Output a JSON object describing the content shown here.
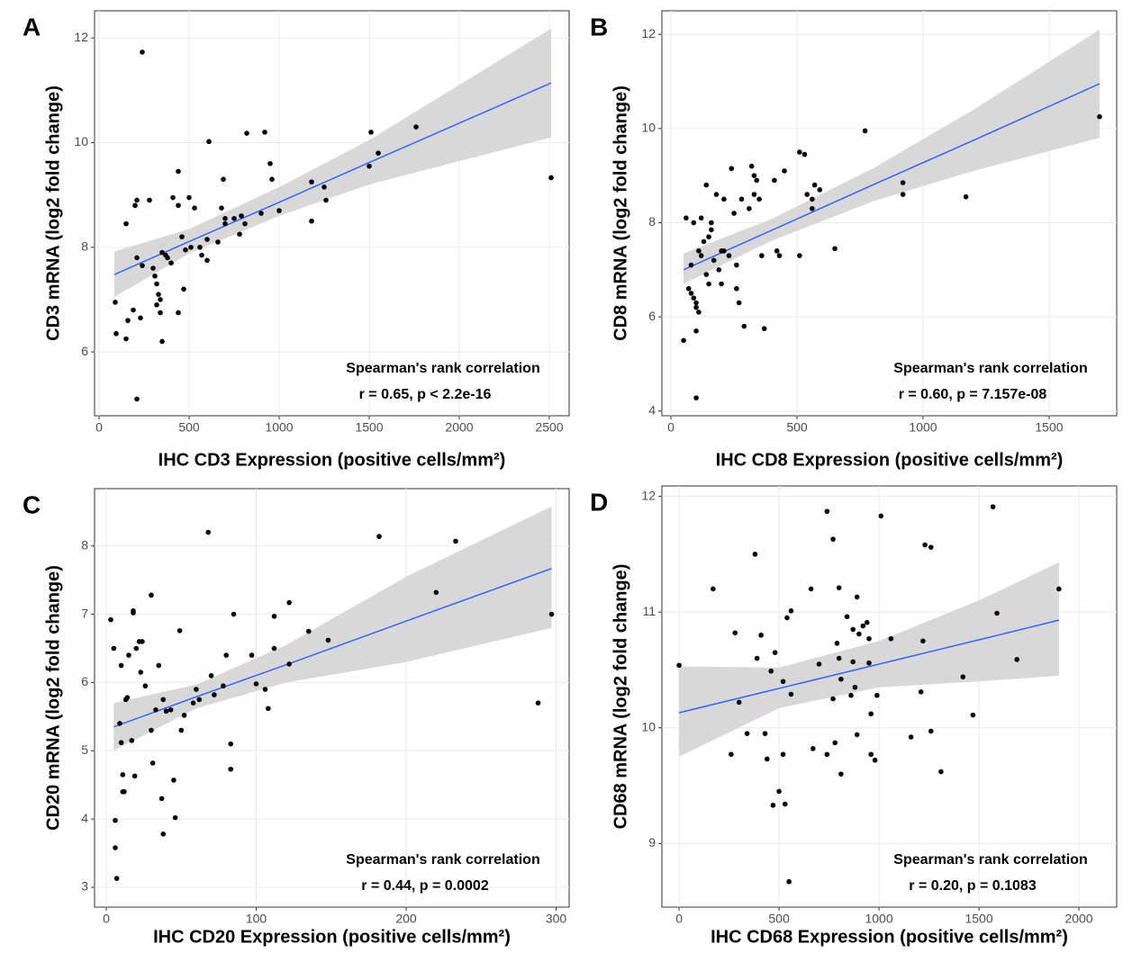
{
  "chart_data": [
    {
      "type": "scatter",
      "panel_label": "A",
      "x_label": "IHC CD3 Expression (positive cells/mm²)",
      "y_label": "CD3 mRNA (log2 fold change)",
      "annotations": [
        "Spearman's rank correlation",
        "r = 0.65,  p < 2.2e-16"
      ],
      "xlim": [
        -25,
        2610
      ],
      "ylim": [
        4.78,
        12.52
      ],
      "xticks": [
        0,
        500,
        1000,
        1500,
        2000,
        2500
      ],
      "yticks": [
        6,
        8,
        10,
        12
      ],
      "grid": true,
      "color": "#000000",
      "x": [
        240,
        210,
        90,
        95,
        150,
        160,
        190,
        230,
        210,
        240,
        200,
        210,
        280,
        150,
        300,
        310,
        320,
        330,
        340,
        320,
        340,
        350,
        350,
        370,
        380,
        400,
        410,
        440,
        440,
        460,
        470,
        480,
        500,
        510,
        440,
        530,
        560,
        570,
        600,
        600,
        610,
        660,
        680,
        690,
        700,
        700,
        750,
        780,
        790,
        810,
        820,
        900,
        920,
        950,
        960,
        1000,
        1180,
        1180,
        1250,
        1260,
        1500,
        1510,
        1550,
        1760,
        2510
      ],
      "values": [
        11.73,
        5.1,
        6.95,
        6.35,
        6.25,
        6.6,
        6.8,
        6.65,
        7.8,
        7.65,
        8.8,
        8.9,
        8.9,
        8.45,
        7.6,
        7.45,
        7.3,
        7.1,
        7.0,
        6.9,
        6.75,
        6.2,
        7.9,
        7.85,
        7.8,
        7.7,
        8.95,
        9.45,
        8.8,
        8.2,
        7.2,
        7.95,
        8.95,
        8.0,
        6.75,
        8.75,
        8.0,
        7.85,
        8.15,
        7.75,
        10.02,
        8.1,
        8.75,
        9.3,
        8.45,
        8.55,
        8.55,
        8.25,
        8.6,
        8.45,
        10.18,
        8.65,
        10.2,
        9.6,
        9.3,
        8.7,
        9.25,
        8.5,
        9.15,
        8.9,
        9.55,
        10.2,
        9.8,
        10.3,
        9.33
      ],
      "fit": {
        "color": "#3366ff",
        "band_color": "#d4d4d4",
        "x": [
          85,
          500,
          1000,
          1500,
          2510
        ],
        "values": [
          7.48,
          8.11,
          8.86,
          9.62,
          11.14
        ],
        "lower": [
          7.05,
          7.88,
          8.6,
          9.2,
          10.1
        ],
        "upper": [
          7.92,
          8.35,
          9.15,
          10.05,
          12.18
        ]
      }
    },
    {
      "type": "scatter",
      "panel_label": "B",
      "x_label": "IHC CD8 Expression (positive cells/mm²)",
      "y_label": "CD8 mRNA (log2 fold change)",
      "annotations": [
        "Spearman's rank correlation",
        "r = 0.60,  p = 7.157e-08"
      ],
      "xlim": [
        -36,
        1768
      ],
      "ylim": [
        3.9,
        12.5
      ],
      "xticks": [
        0,
        500,
        1000,
        1500
      ],
      "yticks": [
        4,
        6,
        8,
        10,
        12
      ],
      "grid": true,
      "color": "#000000",
      "x": [
        50,
        60,
        70,
        80,
        80,
        90,
        90,
        100,
        100,
        100,
        100,
        110,
        110,
        120,
        120,
        130,
        140,
        140,
        150,
        150,
        160,
        160,
        170,
        180,
        190,
        200,
        200,
        210,
        210,
        230,
        240,
        250,
        260,
        260,
        270,
        280,
        290,
        310,
        320,
        330,
        330,
        340,
        350,
        360,
        370,
        410,
        420,
        430,
        450,
        510,
        510,
        530,
        540,
        560,
        560,
        570,
        590,
        650,
        770,
        920,
        920,
        1170,
        1700
      ],
      "values": [
        5.5,
        8.1,
        6.6,
        7.1,
        6.5,
        6.4,
        8.0,
        6.3,
        6.2,
        4.28,
        5.7,
        6.1,
        7.4,
        8.1,
        7.3,
        7.6,
        8.8,
        6.9,
        7.7,
        6.7,
        8.0,
        7.85,
        7.2,
        8.6,
        7.0,
        7.4,
        6.7,
        7.4,
        8.5,
        7.3,
        9.15,
        8.2,
        7.1,
        6.6,
        6.3,
        8.5,
        5.8,
        8.3,
        9.2,
        9.0,
        8.6,
        8.9,
        8.5,
        7.3,
        5.75,
        8.9,
        7.4,
        7.3,
        9.1,
        9.5,
        7.3,
        9.45,
        8.6,
        8.3,
        8.5,
        8.8,
        8.7,
        7.45,
        9.95,
        8.6,
        8.85,
        8.55,
        10.25
      ],
      "fit": {
        "color": "#3366ff",
        "band_color": "#d4d4d4",
        "x": [
          50,
          400,
          800,
          1200,
          1700
        ],
        "values": [
          7.0,
          7.84,
          8.8,
          9.75,
          10.95
        ],
        "lower": [
          6.7,
          7.62,
          8.45,
          9.1,
          9.8
        ],
        "upper": [
          7.35,
          8.08,
          9.15,
          10.4,
          12.1
        ]
      }
    },
    {
      "type": "scatter",
      "panel_label": "C",
      "x_label": "IHC CD20 Expression (positive cells/mm²)",
      "y_label": "CD20 mRNA (log2 fold change)",
      "annotations": [
        "Spearman's rank correlation",
        "r = 0.44,  p = 0.0002"
      ],
      "xlim": [
        -7.8,
        308.7
      ],
      "ylim": [
        2.71,
        8.84
      ],
      "xticks": [
        0,
        100,
        200,
        300
      ],
      "yticks": [
        3,
        4,
        5,
        6,
        7,
        8
      ],
      "grid": true,
      "color": "#000000",
      "x": [
        3,
        5,
        6,
        6,
        7,
        9,
        10,
        10,
        11,
        11,
        12,
        13,
        14,
        15,
        17,
        18,
        18,
        19,
        20,
        22,
        23,
        24,
        26,
        30,
        30,
        31,
        33,
        35,
        37,
        38,
        38,
        40,
        43,
        45,
        46,
        49,
        50,
        52,
        58,
        60,
        62,
        68,
        70,
        72,
        78,
        80,
        83,
        83,
        85,
        97,
        100,
        106,
        108,
        112,
        112,
        122,
        122,
        135,
        148,
        182,
        220,
        233,
        288,
        297
      ],
      "values": [
        6.92,
        6.5,
        3.98,
        3.58,
        3.13,
        5.4,
        5.12,
        6.25,
        4.65,
        4.4,
        4.4,
        5.75,
        5.78,
        6.4,
        5.15,
        7.02,
        7.05,
        4.63,
        6.5,
        6.6,
        6.15,
        6.6,
        5.95,
        7.28,
        5.3,
        4.82,
        5.6,
        6.25,
        4.3,
        5.75,
        3.78,
        5.58,
        5.6,
        4.57,
        4.02,
        6.76,
        5.3,
        5.52,
        5.7,
        5.9,
        5.75,
        8.2,
        6.1,
        5.82,
        5.95,
        6.4,
        5.1,
        4.73,
        7.0,
        6.4,
        5.98,
        5.9,
        5.62,
        6.5,
        6.97,
        7.17,
        6.27,
        6.75,
        6.62,
        8.14,
        7.32,
        8.07,
        5.7,
        7.0
      ],
      "fit": {
        "color": "#3366ff",
        "band_color": "#d4d4d4",
        "x": [
          5,
          60,
          120,
          200,
          297
        ],
        "values": [
          5.35,
          5.79,
          6.26,
          6.9,
          7.67
        ],
        "lower": [
          5.0,
          5.62,
          6.0,
          6.3,
          6.8
        ],
        "upper": [
          5.7,
          5.97,
          6.55,
          7.55,
          8.58
        ]
      }
    },
    {
      "type": "scatter",
      "panel_label": "D",
      "x_label": "IHC CD68 Expression (positive cells/mm²)",
      "y_label": "CD68 mRNA (log2 fold change)",
      "annotations": [
        "Spearman's rank correlation",
        "r = 0.20,  p = 0.1083"
      ],
      "xlim": [
        -86,
        2189
      ],
      "ylim": [
        8.45,
        12.09
      ],
      "xticks": [
        0,
        500,
        1000,
        1500,
        2000
      ],
      "yticks": [
        9,
        10,
        11,
        12
      ],
      "grid": true,
      "color": "#000000",
      "x": [
        0,
        170,
        260,
        280,
        300,
        340,
        380,
        390,
        410,
        430,
        440,
        460,
        470,
        480,
        500,
        520,
        520,
        530,
        540,
        550,
        560,
        560,
        660,
        670,
        700,
        740,
        740,
        770,
        770,
        780,
        790,
        800,
        800,
        810,
        810,
        840,
        860,
        870,
        870,
        880,
        890,
        890,
        900,
        920,
        940,
        950,
        950,
        960,
        960,
        980,
        990,
        1010,
        1060,
        1160,
        1210,
        1220,
        1230,
        1260,
        1260,
        1310,
        1420,
        1470,
        1570,
        1590,
        1690,
        1900
      ],
      "values": [
        10.54,
        11.2,
        9.77,
        10.82,
        10.22,
        9.95,
        11.5,
        10.6,
        10.8,
        9.95,
        9.73,
        10.49,
        9.33,
        10.65,
        9.45,
        9.77,
        10.4,
        9.34,
        10.95,
        8.67,
        11.01,
        10.29,
        11.2,
        9.82,
        10.55,
        9.77,
        11.87,
        11.63,
        10.25,
        9.87,
        10.73,
        10.6,
        11.21,
        9.6,
        10.42,
        10.96,
        10.28,
        10.57,
        10.85,
        10.35,
        9.94,
        11.13,
        10.81,
        10.88,
        10.91,
        10.56,
        10.77,
        10.12,
        9.77,
        9.72,
        10.28,
        11.83,
        10.77,
        9.92,
        10.31,
        10.75,
        11.58,
        11.56,
        9.97,
        9.62,
        10.44,
        10.11,
        11.91,
        10.99,
        10.59,
        11.2
      ],
      "fit": {
        "color": "#3366ff",
        "band_color": "#d4d4d4",
        "x": [
          0,
          500,
          1000,
          1500,
          1900
        ],
        "values": [
          10.13,
          10.34,
          10.55,
          10.76,
          10.93
        ],
        "lower": [
          9.75,
          10.17,
          10.35,
          10.4,
          10.45
        ],
        "upper": [
          10.53,
          10.52,
          10.75,
          11.1,
          11.43
        ]
      }
    }
  ]
}
